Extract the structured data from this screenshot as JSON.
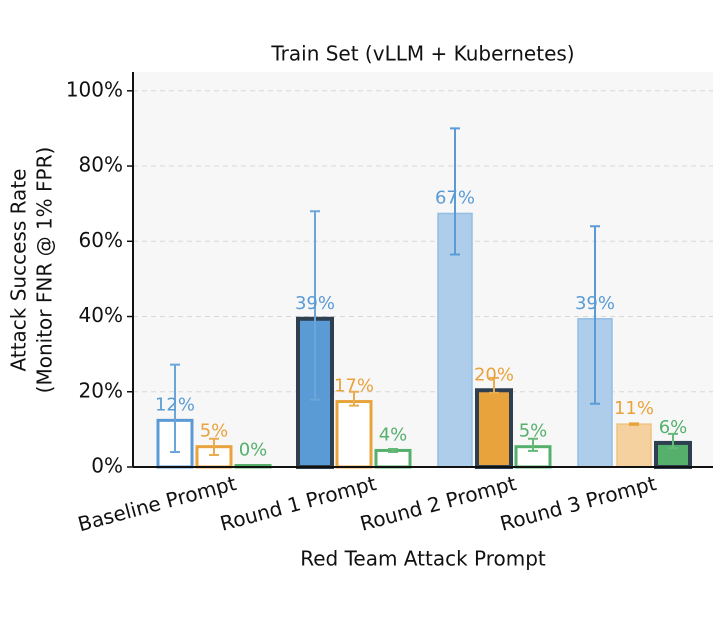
{
  "chart_data": {
    "type": "bar",
    "title": "Train Set (vLLM + Kubernetes)",
    "y_label": [
      "Attack Success Rate",
      "(Monitor FNR @ 1% FPR)"
    ],
    "x_label": "Red Team Attack Prompt",
    "categories": [
      "Baseline Prompt",
      "Round 1 Prompt",
      "Round 2 Prompt",
      "Round 3 Prompt"
    ],
    "series": [
      {
        "color": "#5b9bd5",
        "values": [
          12.4,
          39.4,
          67.4,
          39.4
        ],
        "value_labels": [
          "12%",
          "39%",
          "67%",
          "39%"
        ],
        "ci_low": [
          4,
          17.9,
          56.5,
          16.8
        ],
        "ci_high": [
          27.2,
          68,
          90,
          64
        ]
      },
      {
        "color": "#e8a33d",
        "values": [
          5.4,
          17.4,
          20.4,
          11.4
        ],
        "value_labels": [
          "5%",
          "17%",
          "20%",
          "11%"
        ],
        "ci_low": [
          3.2,
          16.3,
          19.7,
          11.2
        ],
        "ci_high": [
          7.5,
          20,
          23.7,
          11.6
        ]
      },
      {
        "color": "#55b06c",
        "values": [
          0.4,
          4.4,
          5.4,
          6.4
        ],
        "value_labels": [
          "0%",
          "4%",
          "5%",
          "6%"
        ],
        "ci_low": [
          null,
          4,
          4.3,
          5
        ],
        "ci_high": [
          null,
          4.8,
          7.5,
          8.8
        ]
      }
    ],
    "ylim": [
      0,
      105
    ],
    "yticks": [
      {
        "value": 0,
        "label": "0%"
      },
      {
        "value": 20,
        "label": "20%"
      },
      {
        "value": 40,
        "label": "40%"
      },
      {
        "value": 60,
        "label": "60%"
      },
      {
        "value": 80,
        "label": "80%"
      },
      {
        "value": 100,
        "label": "100%"
      }
    ],
    "grid": true
  }
}
